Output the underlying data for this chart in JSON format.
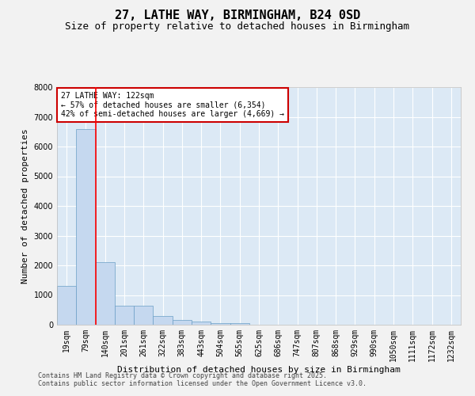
{
  "title": "27, LATHE WAY, BIRMINGHAM, B24 0SD",
  "subtitle": "Size of property relative to detached houses in Birmingham",
  "xlabel": "Distribution of detached houses by size in Birmingham",
  "ylabel": "Number of detached properties",
  "categories": [
    "19sqm",
    "79sqm",
    "140sqm",
    "201sqm",
    "261sqm",
    "322sqm",
    "383sqm",
    "443sqm",
    "504sqm",
    "565sqm",
    "625sqm",
    "686sqm",
    "747sqm",
    "807sqm",
    "868sqm",
    "929sqm",
    "990sqm",
    "1050sqm",
    "1111sqm",
    "1172sqm",
    "1232sqm"
  ],
  "values": [
    1300,
    6600,
    2100,
    650,
    650,
    300,
    150,
    100,
    50,
    50,
    0,
    0,
    0,
    0,
    0,
    0,
    0,
    0,
    0,
    0,
    0
  ],
  "bar_color": "#c5d8ef",
  "bar_edge_color": "#6a9ec5",
  "red_line_index": 2,
  "annotation_text": "27 LATHE WAY: 122sqm\n← 57% of detached houses are smaller (6,354)\n42% of semi-detached houses are larger (4,669) →",
  "annotation_box_color": "#ffffff",
  "annotation_box_edge": "#cc0000",
  "ylim": [
    0,
    8000
  ],
  "yticks": [
    0,
    1000,
    2000,
    3000,
    4000,
    5000,
    6000,
    7000,
    8000
  ],
  "footnote1": "Contains HM Land Registry data © Crown copyright and database right 2025.",
  "footnote2": "Contains public sector information licensed under the Open Government Licence v3.0.",
  "background_color": "#dce9f5",
  "fig_background_color": "#f2f2f2",
  "grid_color": "#ffffff",
  "title_fontsize": 11,
  "subtitle_fontsize": 9,
  "axis_label_fontsize": 8,
  "tick_fontsize": 7,
  "annotation_fontsize": 7,
  "footnote_fontsize": 6
}
